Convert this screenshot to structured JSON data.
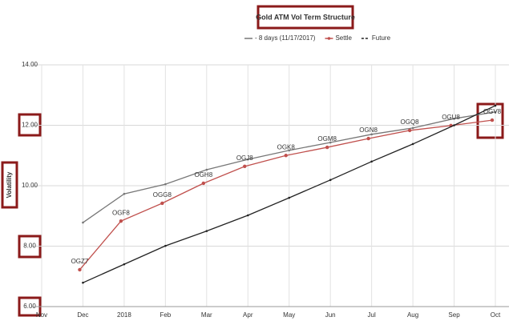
{
  "chart_data": {
    "type": "line",
    "title": "Gold ATM Vol Term Structure",
    "y_label": "Volatility",
    "categories": [
      "Nov",
      "Dec",
      "2018",
      "Feb",
      "Mar",
      "Apr",
      "May",
      "Jun",
      "Jul",
      "Aug",
      "Sep",
      "Oct"
    ],
    "series": [
      {
        "name": "- 8 days (11/17/2017)",
        "color": "#777777",
        "values": [
          null,
          8.78,
          9.73,
          10.05,
          10.53,
          10.87,
          11.17,
          11.43,
          11.7,
          11.91,
          12.22,
          12.44
        ]
      },
      {
        "name": "Settle",
        "color": "#c0504d",
        "values": [
          null,
          7.22,
          8.83,
          9.42,
          10.08,
          10.64,
          11.0,
          11.27,
          11.56,
          11.83,
          11.99,
          12.17
        ],
        "labels": [
          null,
          "OGZ7",
          "OGF8",
          "OGG8",
          "OGH8",
          "OGJ8",
          "OGK8",
          "OGM8",
          "OGN8",
          "OGQ8",
          "OGU8",
          "OGV8"
        ]
      },
      {
        "name": "Future",
        "color": "#222222",
        "values": [
          null,
          6.79,
          7.4,
          8.01,
          8.5,
          9.02,
          9.6,
          10.19,
          10.8,
          11.38,
          12.0,
          12.65
        ]
      }
    ],
    "ylim": [
      6,
      14
    ],
    "yticks": [
      {
        "value": 6,
        "label": "6.00"
      },
      {
        "value": 8,
        "label": "8.00"
      },
      {
        "value": 10,
        "label": "10.00"
      },
      {
        "value": 12,
        "label": "12.00"
      },
      {
        "value": 14,
        "label": "14.00"
      }
    ],
    "grid": true
  }
}
